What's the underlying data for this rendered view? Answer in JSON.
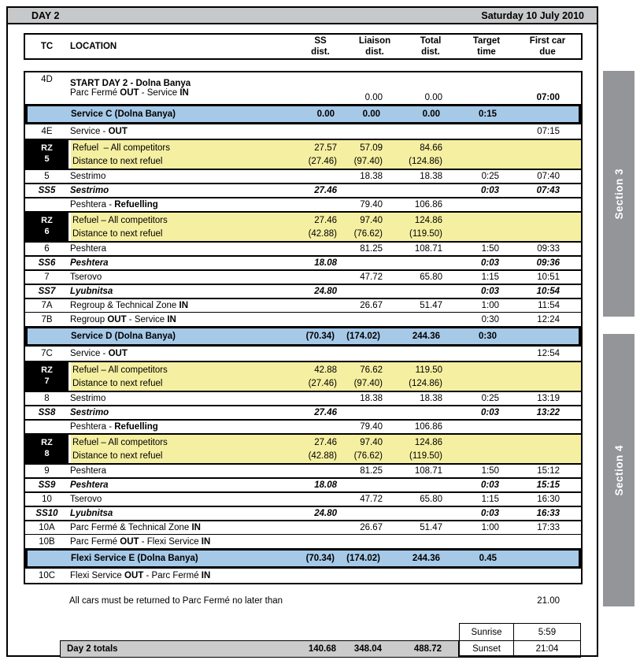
{
  "title_bar": {
    "day_label": "DAY 2",
    "date": "Saturday 10 July 2010"
  },
  "table": {
    "headers": {
      "tc": "TC",
      "location": "LOCATION",
      "ss": [
        "SS",
        "dist."
      ],
      "liaison": [
        "Liaison",
        "dist."
      ],
      "total": [
        "Total",
        "dist."
      ],
      "target": [
        "Target",
        "time"
      ],
      "first_car": [
        "First car",
        "due"
      ]
    },
    "rows": [
      {
        "type": "start",
        "tc": "4D",
        "line1": "START DAY 2 - Dolna Banya",
        "line2": [
          [
            "Parc Fermé ",
            0
          ],
          [
            "OUT",
            1
          ],
          [
            " - Service ",
            0
          ],
          [
            "IN",
            1
          ]
        ],
        "ss": "",
        "liaison": "0.00",
        "total": "0.00",
        "target": "",
        "due": "07:00"
      },
      {
        "type": "service",
        "label": "Service C (Dolna Banya)",
        "ss": "0.00",
        "liaison": "0.00",
        "total": "0.00",
        "target": "0:15",
        "due": ""
      },
      {
        "type": "plain",
        "tc": "4E",
        "loc": [
          [
            "Service - ",
            0
          ],
          [
            "OUT",
            1
          ]
        ],
        "ss": "",
        "liaison": "",
        "total": "",
        "target": "",
        "due": "07:15"
      },
      {
        "type": "refuel",
        "tc": [
          "RZ",
          "5"
        ],
        "lines": [
          {
            "loc": "Refuel  – All competitors",
            "ss": "27.57",
            "liaison": "57.09",
            "total": "84.66"
          },
          {
            "loc": "Distance to next refuel",
            "ss": "(27.46)",
            "liaison": "(97.40)",
            "total": "(124.86)"
          }
        ]
      },
      {
        "type": "plain",
        "tc": "5",
        "loc": [
          [
            "Sestrimo",
            0
          ]
        ],
        "ss": "",
        "liaison": "18.38",
        "total": "18.38",
        "target": "0:25",
        "due": "07:40"
      },
      {
        "type": "stage",
        "tc": "SS5",
        "loc": [
          [
            "Sestrimo",
            0
          ]
        ],
        "ss": "27.46",
        "liaison": "",
        "total": "",
        "target": "0:03",
        "due": "07:43"
      },
      {
        "type": "plain",
        "tc": "",
        "loc": [
          [
            "Peshtera - ",
            0
          ],
          [
            "Refuelling",
            1
          ]
        ],
        "ss": "",
        "liaison": "79.40",
        "total": "106.86",
        "target": "",
        "due": ""
      },
      {
        "type": "refuel",
        "tc": [
          "RZ",
          "6"
        ],
        "lines": [
          {
            "loc": "Refuel – All competitors",
            "ss": "27.46",
            "liaison": "97.40",
            "total": "124.86"
          },
          {
            "loc": "Distance to next refuel",
            "ss": "(42.88)",
            "liaison": "(76.62)",
            "total": "(119.50)"
          }
        ]
      },
      {
        "type": "plain",
        "tc": "6",
        "loc": [
          [
            "Peshtera",
            0
          ]
        ],
        "ss": "",
        "liaison": "81.25",
        "total": "108.71",
        "target": "1:50",
        "due": "09:33"
      },
      {
        "type": "stage",
        "tc": "SS6",
        "loc": [
          [
            "Peshtera",
            0
          ]
        ],
        "ss": "18.08",
        "liaison": "",
        "total": "",
        "target": "0:03",
        "due": "09:36"
      },
      {
        "type": "plain",
        "tc": "7",
        "loc": [
          [
            "Tserovo",
            0
          ]
        ],
        "ss": "",
        "liaison": "47.72",
        "total": "65.80",
        "target": "1:15",
        "due": "10:51"
      },
      {
        "type": "stage",
        "tc": "SS7",
        "loc": [
          [
            "Lyubnitsa",
            0
          ]
        ],
        "ss": "24.80",
        "liaison": "",
        "total": "",
        "target": "0:03",
        "due": "10:54"
      },
      {
        "type": "plain",
        "tc": "7A",
        "loc": [
          [
            "Regroup & Technical Zone ",
            0
          ],
          [
            "IN",
            1
          ]
        ],
        "ss": "",
        "liaison": "26.67",
        "total": "51.47",
        "target": "1:00",
        "due": "11:54"
      },
      {
        "type": "plain",
        "tc": "7B",
        "loc": [
          [
            "Regroup ",
            0
          ],
          [
            "OUT",
            1
          ],
          [
            " - Service ",
            0
          ],
          [
            "IN",
            1
          ]
        ],
        "ss": "",
        "liaison": "",
        "total": "",
        "target": "0:30",
        "due": "12:24"
      },
      {
        "type": "service",
        "label": "Service D (Dolna Banya)",
        "ss": "(70.34)",
        "liaison": "(174.02)",
        "total": "244.36",
        "target": "0:30",
        "due": ""
      },
      {
        "type": "plain",
        "tc": "7C",
        "loc": [
          [
            "Service - ",
            0
          ],
          [
            "OUT",
            1
          ]
        ],
        "ss": "",
        "liaison": "",
        "total": "",
        "target": "",
        "due": "12:54"
      },
      {
        "type": "refuel",
        "tc": [
          "RZ",
          "7"
        ],
        "lines": [
          {
            "loc": "Refuel – All competitors",
            "ss": "42.88",
            "liaison": "76.62",
            "total": "119.50"
          },
          {
            "loc": "Distance to next refuel",
            "ss": "(27.46)",
            "liaison": "(97.40)",
            "total": "(124.86)"
          }
        ]
      },
      {
        "type": "plain",
        "tc": "8",
        "loc": [
          [
            "Sestrimo",
            0
          ]
        ],
        "ss": "",
        "liaison": "18.38",
        "total": "18.38",
        "target": "0:25",
        "due": "13:19"
      },
      {
        "type": "stage",
        "tc": "SS8",
        "loc": [
          [
            "Sestrimo",
            0
          ]
        ],
        "ss": "27.46",
        "liaison": "",
        "total": "",
        "target": "0:03",
        "due": "13:22"
      },
      {
        "type": "plain",
        "tc": "",
        "loc": [
          [
            "Peshtera - ",
            0
          ],
          [
            "Refuelling",
            1
          ]
        ],
        "ss": "",
        "liaison": "79.40",
        "total": "106.86",
        "target": "",
        "due": ""
      },
      {
        "type": "refuel",
        "tc": [
          "RZ",
          "8"
        ],
        "lines": [
          {
            "loc": "Refuel – All competitors",
            "ss": "27.46",
            "liaison": "97.40",
            "total": "124.86"
          },
          {
            "loc": "Distance to next refuel",
            "ss": "(42.88)",
            "liaison": "(76.62)",
            "total": "(119.50)"
          }
        ]
      },
      {
        "type": "plain",
        "tc": "9",
        "loc": [
          [
            "Peshtera",
            0
          ]
        ],
        "ss": "",
        "liaison": "81.25",
        "total": "108.71",
        "target": "1:50",
        "due": "15:12"
      },
      {
        "type": "stage",
        "tc": "SS9",
        "loc": [
          [
            "Peshtera",
            0
          ]
        ],
        "ss": "18.08",
        "liaison": "",
        "total": "",
        "target": "0:03",
        "due": "15:15"
      },
      {
        "type": "plain",
        "tc": "10",
        "loc": [
          [
            "Tserovo",
            0
          ]
        ],
        "ss": "",
        "liaison": "47.72",
        "total": "65.80",
        "target": "1:15",
        "due": "16:30"
      },
      {
        "type": "stage",
        "tc": "SS10",
        "loc": [
          [
            "Lyubnitsa",
            0
          ]
        ],
        "ss": "24.80",
        "liaison": "",
        "total": "",
        "target": "0:03",
        "due": "16:33"
      },
      {
        "type": "plain",
        "tc": "10A",
        "loc": [
          [
            "Parc Fermé & Technical Zone ",
            0
          ],
          [
            "IN",
            1
          ]
        ],
        "ss": "",
        "liaison": "26.67",
        "total": "51.47",
        "target": "1:00",
        "due": "17:33"
      },
      {
        "type": "plain",
        "tc": "10B",
        "loc": [
          [
            "Parc Fermé ",
            0
          ],
          [
            "OUT",
            1
          ],
          [
            " - Flexi Service ",
            0
          ],
          [
            "IN",
            1
          ]
        ],
        "ss": "",
        "liaison": "",
        "total": "",
        "target": "",
        "due": ""
      },
      {
        "type": "service",
        "label": "Flexi Service E (Dolna Banya)",
        "ss": "(70.34)",
        "liaison": "(174.02)",
        "total": "244.36",
        "target": "0.45",
        "due": ""
      },
      {
        "type": "plain",
        "tc": "10C",
        "loc": [
          [
            "Flexi Service ",
            0
          ],
          [
            "OUT",
            1
          ],
          [
            " - Parc Fermé ",
            0
          ],
          [
            "IN",
            1
          ]
        ],
        "ss": "",
        "liaison": "",
        "total": "",
        "target": "",
        "due": ""
      }
    ]
  },
  "notes": {
    "all_cars": "All cars must be returned to Parc Fermé no later than",
    "all_cars_time": "21.00"
  },
  "totals": {
    "label": "Day 2 totals",
    "ss": "140.68",
    "liaison": "348.04",
    "total": "488.72"
  },
  "sun": {
    "sunrise_label": "Sunrise",
    "sunrise_time": "5:59",
    "sunset_label": "Sunset",
    "sunset_time": "21:04"
  },
  "sections": {
    "section3": "Section 3",
    "section4": "Section 4"
  },
  "colors": {
    "service_blue": "#A6C9E8",
    "refuel_yellow": "#F5EFA1",
    "bar_gray": "#C7C8CA",
    "totals_gray": "#CBCBCB",
    "section_gray": "#939598"
  }
}
